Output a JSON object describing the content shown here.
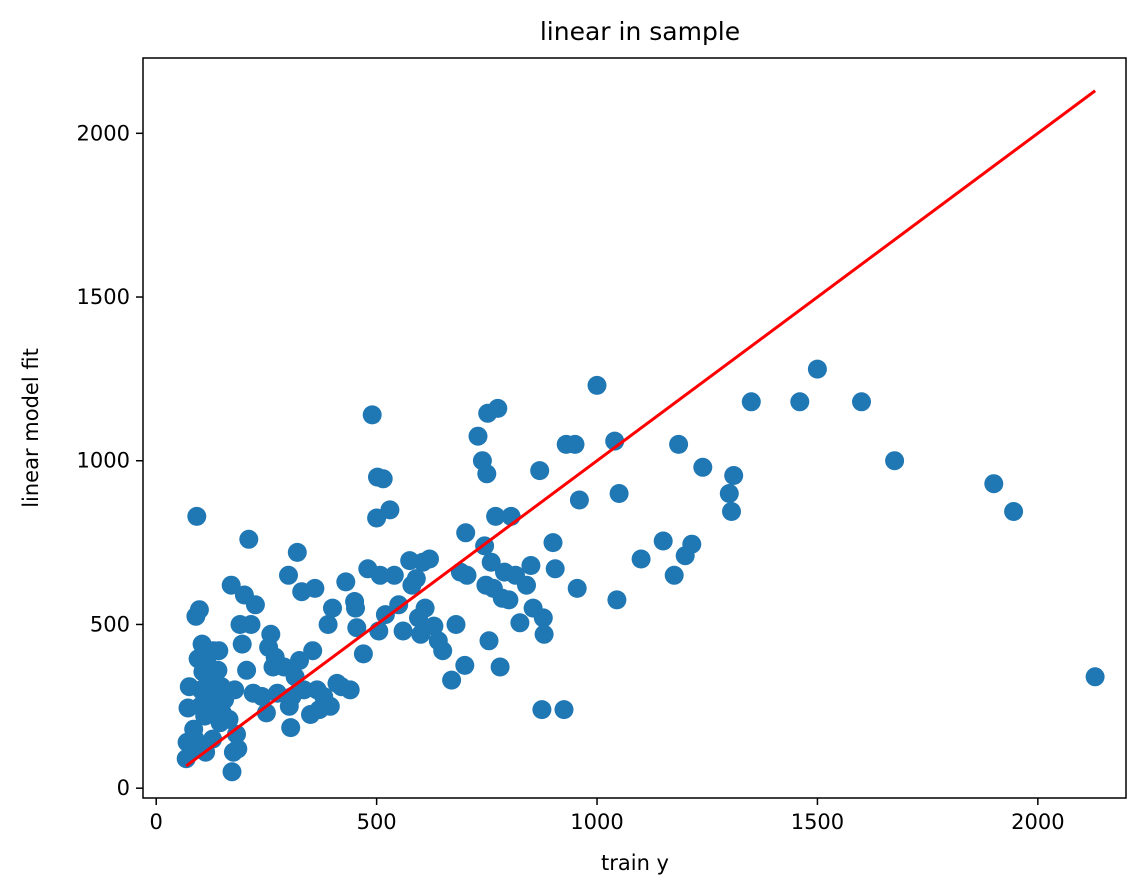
{
  "chart_data": {
    "type": "scatter",
    "title": "linear in sample",
    "xlabel": "train y",
    "ylabel": "linear model fit",
    "xlim": [
      -30,
      2200
    ],
    "ylim": [
      -30,
      2230
    ],
    "xticks": [
      0,
      500,
      1000,
      1500,
      2000
    ],
    "yticks": [
      0,
      500,
      1000,
      1500,
      2000
    ],
    "grid": false,
    "colors": {
      "points": "#1f77b4",
      "line": "#ff0000",
      "axes": "#000000"
    },
    "series": [
      {
        "type": "scatter",
        "points": [
          [
            68,
            90
          ],
          [
            70,
            140
          ],
          [
            72,
            245
          ],
          [
            75,
            310
          ],
          [
            80,
            120
          ],
          [
            85,
            180
          ],
          [
            88,
            150
          ],
          [
            90,
            525
          ],
          [
            92,
            830
          ],
          [
            95,
            395
          ],
          [
            98,
            545
          ],
          [
            100,
            250
          ],
          [
            102,
            300
          ],
          [
            104,
            440
          ],
          [
            106,
            355
          ],
          [
            108,
            290
          ],
          [
            110,
            220
          ],
          [
            112,
            110
          ],
          [
            115,
            395
          ],
          [
            118,
            330
          ],
          [
            120,
            260
          ],
          [
            125,
            300
          ],
          [
            128,
            150
          ],
          [
            130,
            420
          ],
          [
            133,
            310
          ],
          [
            136,
            280
          ],
          [
            140,
            360
          ],
          [
            142,
            420
          ],
          [
            145,
            200
          ],
          [
            148,
            310
          ],
          [
            150,
            230
          ],
          [
            155,
            270
          ],
          [
            160,
            290
          ],
          [
            165,
            210
          ],
          [
            170,
            620
          ],
          [
            172,
            50
          ],
          [
            175,
            110
          ],
          [
            178,
            300
          ],
          [
            182,
            165
          ],
          [
            185,
            120
          ],
          [
            190,
            500
          ],
          [
            195,
            440
          ],
          [
            200,
            590
          ],
          [
            205,
            360
          ],
          [
            210,
            760
          ],
          [
            215,
            500
          ],
          [
            220,
            290
          ],
          [
            225,
            560
          ],
          [
            240,
            280
          ],
          [
            250,
            230
          ],
          [
            255,
            430
          ],
          [
            260,
            470
          ],
          [
            265,
            370
          ],
          [
            270,
            400
          ],
          [
            275,
            290
          ],
          [
            290,
            370
          ],
          [
            300,
            650
          ],
          [
            302,
            250
          ],
          [
            305,
            185
          ],
          [
            308,
            280
          ],
          [
            315,
            340
          ],
          [
            320,
            720
          ],
          [
            325,
            390
          ],
          [
            330,
            600
          ],
          [
            335,
            300
          ],
          [
            350,
            225
          ],
          [
            355,
            420
          ],
          [
            360,
            610
          ],
          [
            365,
            300
          ],
          [
            370,
            240
          ],
          [
            380,
            280
          ],
          [
            390,
            500
          ],
          [
            395,
            250
          ],
          [
            400,
            550
          ],
          [
            410,
            320
          ],
          [
            420,
            310
          ],
          [
            430,
            630
          ],
          [
            440,
            300
          ],
          [
            450,
            570
          ],
          [
            452,
            550
          ],
          [
            455,
            490
          ],
          [
            470,
            410
          ],
          [
            480,
            670
          ],
          [
            490,
            1140
          ],
          [
            500,
            825
          ],
          [
            502,
            950
          ],
          [
            505,
            480
          ],
          [
            508,
            650
          ],
          [
            515,
            945
          ],
          [
            520,
            530
          ],
          [
            530,
            850
          ],
          [
            540,
            650
          ],
          [
            550,
            560
          ],
          [
            560,
            480
          ],
          [
            575,
            695
          ],
          [
            580,
            620
          ],
          [
            590,
            640
          ],
          [
            595,
            520
          ],
          [
            600,
            470
          ],
          [
            605,
            690
          ],
          [
            610,
            550
          ],
          [
            620,
            700
          ],
          [
            630,
            495
          ],
          [
            640,
            450
          ],
          [
            650,
            420
          ],
          [
            670,
            330
          ],
          [
            680,
            500
          ],
          [
            690,
            660
          ],
          [
            700,
            375
          ],
          [
            702,
            780
          ],
          [
            705,
            650
          ],
          [
            730,
            1075
          ],
          [
            740,
            1000
          ],
          [
            745,
            740
          ],
          [
            748,
            620
          ],
          [
            750,
            960
          ],
          [
            752,
            1145
          ],
          [
            755,
            450
          ],
          [
            760,
            690
          ],
          [
            765,
            610
          ],
          [
            770,
            830
          ],
          [
            775,
            1160
          ],
          [
            780,
            370
          ],
          [
            785,
            580
          ],
          [
            790,
            660
          ],
          [
            800,
            575
          ],
          [
            805,
            830
          ],
          [
            815,
            650
          ],
          [
            825,
            505
          ],
          [
            840,
            620
          ],
          [
            850,
            680
          ],
          [
            855,
            550
          ],
          [
            870,
            970
          ],
          [
            875,
            240
          ],
          [
            878,
            520
          ],
          [
            880,
            470
          ],
          [
            900,
            750
          ],
          [
            905,
            670
          ],
          [
            925,
            240
          ],
          [
            930,
            1050
          ],
          [
            950,
            1050
          ],
          [
            955,
            610
          ],
          [
            960,
            880
          ],
          [
            1000,
            1230
          ],
          [
            1040,
            1060
          ],
          [
            1045,
            575
          ],
          [
            1050,
            900
          ],
          [
            1100,
            700
          ],
          [
            1150,
            755
          ],
          [
            1175,
            650
          ],
          [
            1185,
            1050
          ],
          [
            1200,
            710
          ],
          [
            1215,
            745
          ],
          [
            1240,
            980
          ],
          [
            1300,
            900
          ],
          [
            1305,
            845
          ],
          [
            1310,
            955
          ],
          [
            1350,
            1180
          ],
          [
            1460,
            1180
          ],
          [
            1500,
            1280
          ],
          [
            1600,
            1180
          ],
          [
            1675,
            1000
          ],
          [
            1900,
            930
          ],
          [
            1945,
            845
          ],
          [
            2130,
            340
          ]
        ]
      },
      {
        "type": "line",
        "points": [
          [
            68,
            68
          ],
          [
            2130,
            2130
          ]
        ]
      }
    ]
  }
}
